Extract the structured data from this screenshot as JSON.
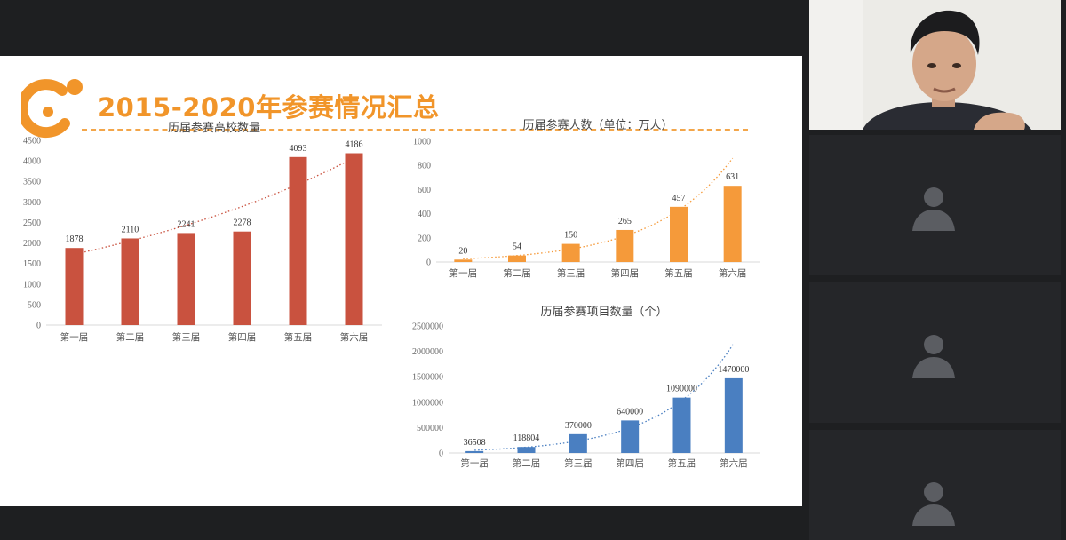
{
  "slide": {
    "title": "2015-2020年参赛情况汇总",
    "colors": {
      "accent": "#f1952a",
      "red_bar": "#c9523f",
      "orange_bar": "#f59a3a",
      "blue_bar": "#4a7fc1"
    },
    "logo_icon": "orange-smile-logo-icon"
  },
  "chart_data": [
    {
      "type": "bar",
      "title": "历届参赛高校数量",
      "categories": [
        "第一届",
        "第二届",
        "第三届",
        "第四届",
        "第五届",
        "第六届"
      ],
      "values": [
        1878,
        2110,
        2241,
        2278,
        4093,
        4186
      ],
      "ylim": [
        0,
        4500
      ],
      "yticks": [
        0,
        500,
        1000,
        1500,
        2000,
        2500,
        3000,
        3500,
        4000,
        4500
      ],
      "trendline": "exponential dotted",
      "color": "#c9523f",
      "grid": false
    },
    {
      "type": "bar",
      "title": "历届参赛人数（单位：万人）",
      "categories": [
        "第一届",
        "第二届",
        "第三届",
        "第四届",
        "第五届",
        "第六届"
      ],
      "values": [
        20,
        54,
        150,
        265,
        457,
        631
      ],
      "ylim": [
        0,
        1000
      ],
      "yticks": [
        0,
        200,
        400,
        600,
        800,
        1000
      ],
      "trendline": "exponential dotted",
      "color": "#f59a3a",
      "grid": false
    },
    {
      "type": "bar",
      "title": "历届参赛项目数量（个）",
      "categories": [
        "第一届",
        "第二届",
        "第三届",
        "第四届",
        "第五届",
        "第六届"
      ],
      "values": [
        36508,
        118804,
        370000,
        640000,
        1090000,
        1470000
      ],
      "ylim": [
        0,
        2500000
      ],
      "yticks": [
        0,
        500000,
        1000000,
        1500000,
        2000000,
        2500000
      ],
      "trendline": "exponential dotted",
      "color": "#4a7fc1",
      "grid": false
    }
  ],
  "sidebar": {
    "webcam": {
      "icon": "presenter-video-feed"
    },
    "participants": [
      {
        "icon": "default-avatar-icon"
      },
      {
        "icon": "default-avatar-icon"
      },
      {
        "icon": "default-avatar-icon"
      }
    ]
  }
}
